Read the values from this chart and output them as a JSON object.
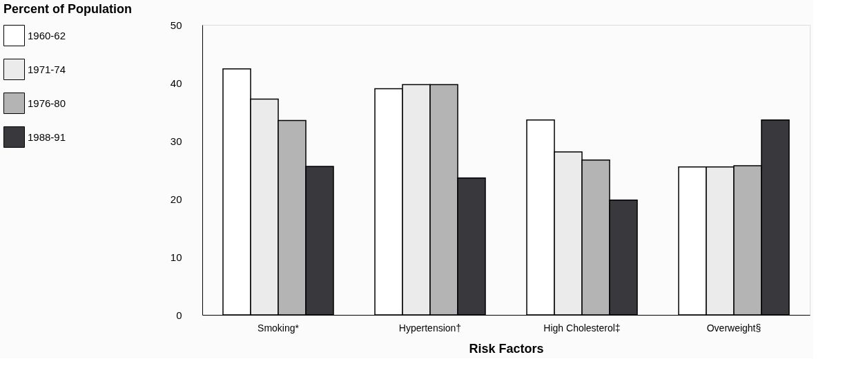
{
  "chart_data": {
    "type": "bar",
    "ylabel": "Percent of Population",
    "xlabel": "Risk Factors",
    "categories": [
      "Smoking*",
      "Hypertension†",
      "High Cholesterol‡",
      "Overweight§"
    ],
    "series": [
      {
        "name": "1960-62",
        "color": "#ffffff",
        "values": [
          42.4,
          39.0,
          33.6,
          25.5
        ]
      },
      {
        "name": "1971-74",
        "color": "#ebebeb",
        "values": [
          37.2,
          39.7,
          28.1,
          25.5
        ]
      },
      {
        "name": "1976-80",
        "color": "#b4b4b4",
        "values": [
          33.5,
          39.7,
          26.7,
          25.7
        ]
      },
      {
        "name": "1988-91",
        "color": "#38383d",
        "values": [
          25.6,
          23.6,
          19.8,
          33.6
        ]
      }
    ],
    "ylim": [
      0,
      50
    ],
    "yticks": [
      0,
      10,
      20,
      30,
      40,
      50
    ],
    "grid": false,
    "legend": "left"
  }
}
